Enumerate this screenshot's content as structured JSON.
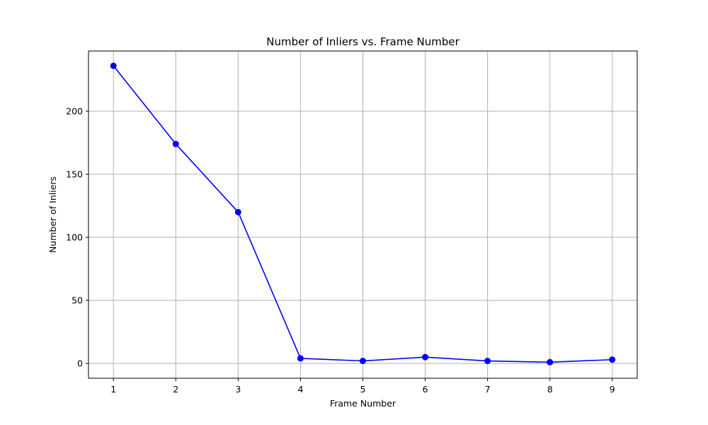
{
  "chart_data": {
    "type": "line",
    "title": "Number of Inliers vs. Frame Number",
    "xlabel": "Frame Number",
    "ylabel": "Number of Inliers",
    "x": [
      1,
      2,
      3,
      4,
      5,
      6,
      7,
      8,
      9
    ],
    "series": [
      {
        "values": [
          236,
          174,
          120,
          4,
          2,
          5,
          2,
          1,
          3
        ],
        "color": "#0000ff",
        "marker": "circle"
      }
    ],
    "xlim": [
      0.6,
      9.4
    ],
    "ylim": [
      -11.75,
      247.75
    ],
    "xticks": [
      1,
      2,
      3,
      4,
      5,
      6,
      7,
      8,
      9
    ],
    "yticks": [
      0,
      50,
      100,
      150,
      200
    ],
    "grid": true,
    "grid_color": "#b0b0b0",
    "axis_color": "#000000"
  }
}
